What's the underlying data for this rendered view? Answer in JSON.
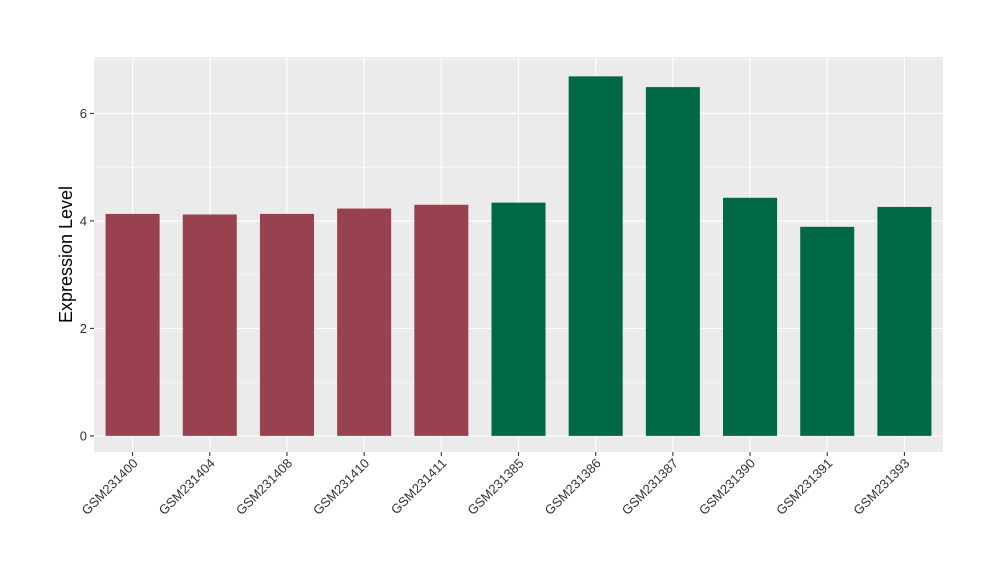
{
  "chart_data": {
    "type": "bar",
    "title": "",
    "xlabel": "",
    "ylabel": "Expression Level",
    "ylim": [
      -0.3,
      7.05
    ],
    "yticks": [
      0,
      2,
      4,
      6
    ],
    "grid": true,
    "legend": "none",
    "categories": [
      "GSM231400",
      "GSM231404",
      "GSM231408",
      "GSM231410",
      "GSM231411",
      "GSM231385",
      "GSM231386",
      "GSM231387",
      "GSM231390",
      "GSM231391",
      "GSM231393"
    ],
    "values": [
      4.13,
      4.12,
      4.13,
      4.23,
      4.3,
      4.34,
      6.69,
      6.49,
      4.43,
      3.89,
      4.26
    ],
    "groups": [
      "a",
      "a",
      "a",
      "a",
      "a",
      "b",
      "b",
      "b",
      "b",
      "b",
      "b"
    ],
    "colors": {
      "a": "#98424F",
      "b": "#016846"
    },
    "panel_background": "#EBEBEB",
    "grid_color": "#FFFFFF"
  }
}
